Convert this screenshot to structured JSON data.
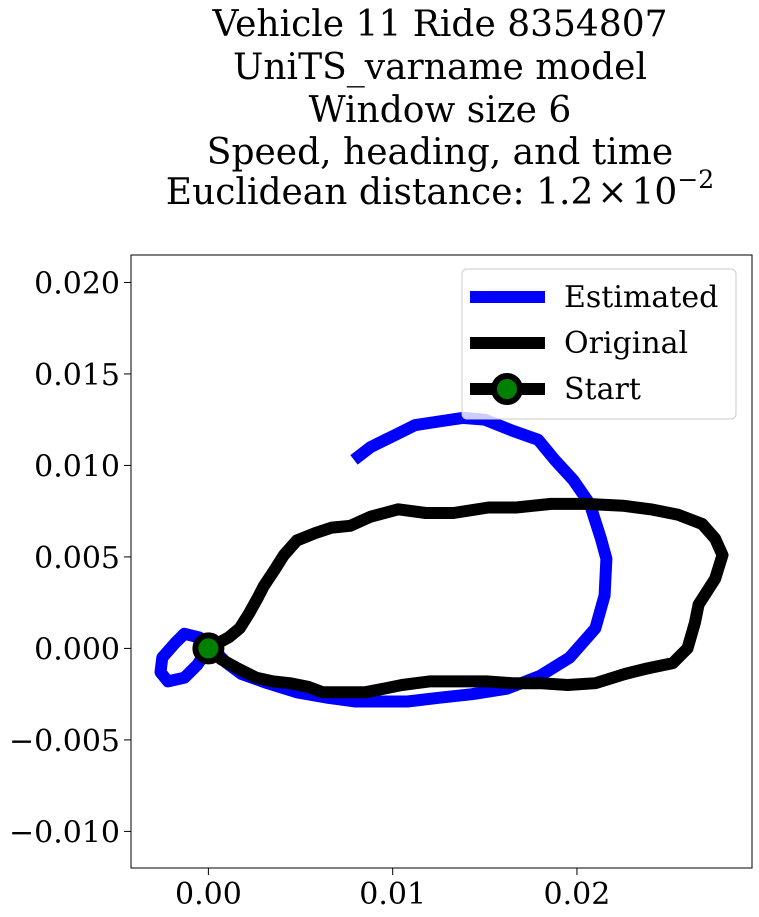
{
  "chart_data": {
    "type": "line",
    "title_lines": [
      "Vehicle 11 Ride 8354807",
      "UniTS_varname model",
      "Window size 6",
      "Speed, heading, and time",
      "Euclidean distance: "
    ],
    "title_math": {
      "mantissa": "1.2",
      "times": "×",
      "base": "10",
      "exponent": "−2"
    },
    "xlim": [
      -0.0042,
      0.0295
    ],
    "ylim": [
      -0.012,
      0.0215
    ],
    "xticks": [
      0.0,
      0.01,
      0.02
    ],
    "xtick_labels": [
      "0.00",
      "0.01",
      "0.02"
    ],
    "yticks": [
      -0.01,
      -0.005,
      0.0,
      0.005,
      0.01,
      0.015,
      0.02
    ],
    "ytick_labels": [
      "−0.010",
      "−0.005",
      "0.000",
      "0.005",
      "0.010",
      "0.015",
      "0.020"
    ],
    "legend_position": "top-right",
    "grid": false,
    "series": [
      {
        "name": "Estimated",
        "color": "#0000ff",
        "points": [
          [
            0.0079,
            0.0103
          ],
          [
            0.0088,
            0.011
          ],
          [
            0.01,
            0.0116
          ],
          [
            0.0112,
            0.0122
          ],
          [
            0.0125,
            0.0124
          ],
          [
            0.0138,
            0.0126
          ],
          [
            0.015,
            0.0125
          ],
          [
            0.0165,
            0.0119
          ],
          [
            0.0179,
            0.0114
          ],
          [
            0.0188,
            0.0103
          ],
          [
            0.0198,
            0.0092
          ],
          [
            0.0207,
            0.0079
          ],
          [
            0.0213,
            0.006
          ],
          [
            0.0216,
            0.0049
          ],
          [
            0.0215,
            0.0029
          ],
          [
            0.021,
            0.0011
          ],
          [
            0.0196,
            -0.0005
          ],
          [
            0.018,
            -0.0015
          ],
          [
            0.0162,
            -0.0022
          ],
          [
            0.0143,
            -0.0025
          ],
          [
            0.0125,
            -0.0027
          ],
          [
            0.0108,
            -0.0029
          ],
          [
            0.0094,
            -0.0029
          ],
          [
            0.008,
            -0.0029
          ],
          [
            0.0065,
            -0.0027
          ],
          [
            0.0048,
            -0.0024
          ],
          [
            0.0032,
            -0.0019
          ],
          [
            0.0018,
            -0.0014
          ],
          [
            0.001,
            -0.0008
          ],
          [
            0.0004,
            -0.0002
          ],
          [
            -0.0005,
            0.0006
          ],
          [
            -0.0013,
            0.0008
          ],
          [
            -0.0018,
            0.0003
          ],
          [
            -0.0025,
            -0.0005
          ],
          [
            -0.0026,
            -0.0013
          ],
          [
            -0.0022,
            -0.0018
          ],
          [
            -0.0013,
            -0.0016
          ],
          [
            -0.0006,
            -0.0009
          ],
          [
            0.0,
            0.0
          ]
        ]
      },
      {
        "name": "Original",
        "color": "#000000",
        "points": [
          [
            0.0,
            0.0
          ],
          [
            0.0011,
            0.0006
          ],
          [
            0.0017,
            0.0011
          ],
          [
            0.0022,
            0.0019
          ],
          [
            0.0027,
            0.0028
          ],
          [
            0.003,
            0.0034
          ],
          [
            0.0036,
            0.0043
          ],
          [
            0.0041,
            0.0051
          ],
          [
            0.0048,
            0.0059
          ],
          [
            0.0058,
            0.0063
          ],
          [
            0.0067,
            0.0066
          ],
          [
            0.0077,
            0.0067
          ],
          [
            0.0088,
            0.0072
          ],
          [
            0.0103,
            0.0076
          ],
          [
            0.0118,
            0.0074
          ],
          [
            0.0133,
            0.0074
          ],
          [
            0.0152,
            0.0077
          ],
          [
            0.0167,
            0.0077
          ],
          [
            0.0186,
            0.0079
          ],
          [
            0.0205,
            0.0079
          ],
          [
            0.0225,
            0.0078
          ],
          [
            0.024,
            0.0076
          ],
          [
            0.0255,
            0.0073
          ],
          [
            0.0268,
            0.0068
          ],
          [
            0.0275,
            0.006
          ],
          [
            0.0279,
            0.0051
          ],
          [
            0.0275,
            0.0038
          ],
          [
            0.0266,
            0.0024
          ],
          [
            0.0264,
            0.0014
          ],
          [
            0.026,
            0.0
          ],
          [
            0.0252,
            -0.0008
          ],
          [
            0.0238,
            -0.0011
          ],
          [
            0.0226,
            -0.0014
          ],
          [
            0.021,
            -0.0019
          ],
          [
            0.0195,
            -0.002
          ],
          [
            0.018,
            -0.0019
          ],
          [
            0.0165,
            -0.0019
          ],
          [
            0.0151,
            -0.0018
          ],
          [
            0.0135,
            -0.0018
          ],
          [
            0.012,
            -0.0018
          ],
          [
            0.0105,
            -0.002
          ],
          [
            0.0095,
            -0.0022
          ],
          [
            0.0085,
            -0.0024
          ],
          [
            0.0073,
            -0.0024
          ],
          [
            0.0062,
            -0.0024
          ],
          [
            0.0054,
            -0.0021
          ],
          [
            0.0044,
            -0.0019
          ],
          [
            0.0035,
            -0.0018
          ],
          [
            0.0026,
            -0.0016
          ],
          [
            0.0016,
            -0.0011
          ],
          [
            0.0007,
            -0.0006
          ],
          [
            0.0,
            0.0
          ]
        ]
      },
      {
        "name": "Start",
        "color": "#000000",
        "marker_face": "#008000",
        "points": [
          [
            0.0,
            0.0
          ]
        ]
      }
    ]
  }
}
